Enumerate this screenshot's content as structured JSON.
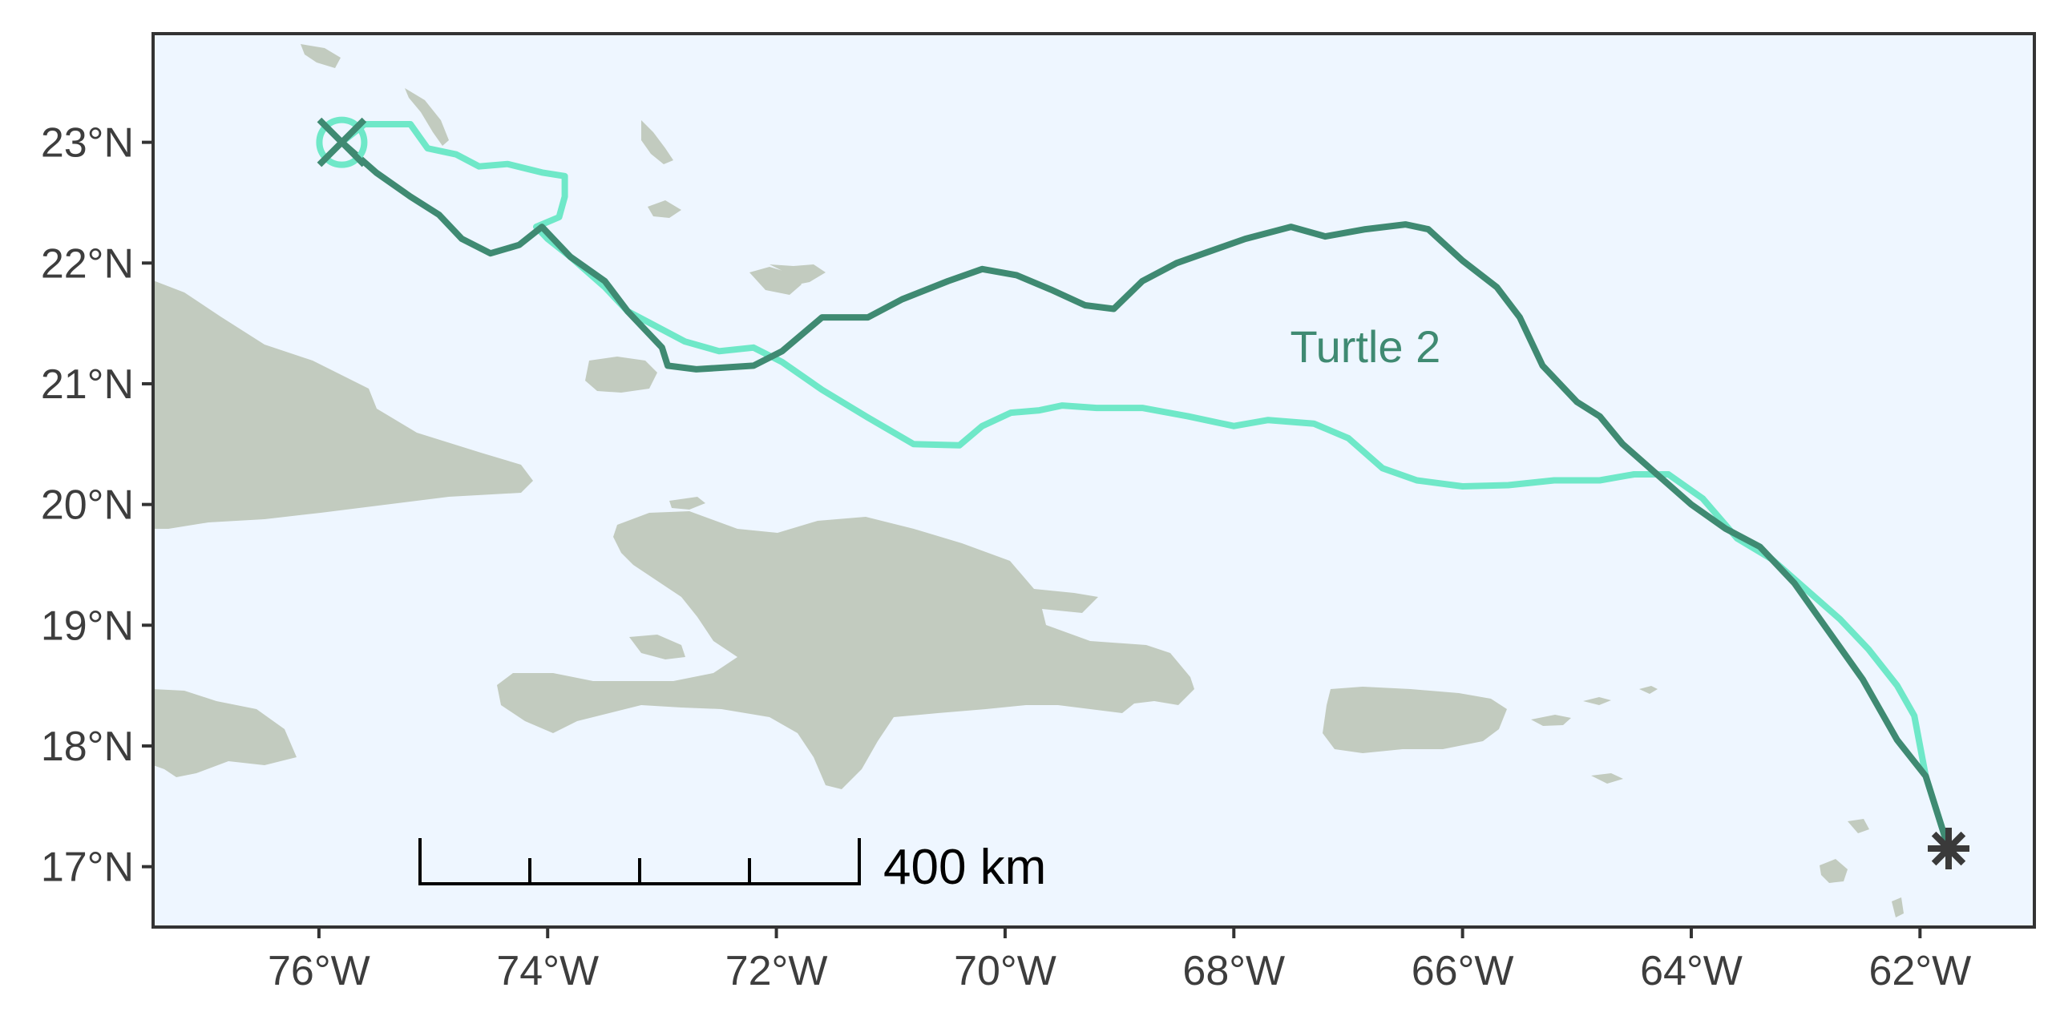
{
  "map": {
    "extent": {
      "lon_min": -77.45,
      "lon_max": -61.0,
      "lat_min": 16.5,
      "lat_max": 23.9
    },
    "colors": {
      "ocean": "#eef6ff",
      "land": "#c2cbbf",
      "frame": "#333333",
      "turtle1": "#6fe8c8",
      "turtle2": "#3f8a72",
      "end_marker": "#3a3a3a"
    },
    "x_axis": {
      "ticks": [
        {
          "value": -76,
          "label": "76°W"
        },
        {
          "value": -74,
          "label": "74°W"
        },
        {
          "value": -72,
          "label": "72°W"
        },
        {
          "value": -70,
          "label": "70°W"
        },
        {
          "value": -68,
          "label": "68°W"
        },
        {
          "value": -66,
          "label": "66°W"
        },
        {
          "value": -64,
          "label": "64°W"
        },
        {
          "value": -62,
          "label": "62°W"
        }
      ]
    },
    "y_axis": {
      "ticks": [
        {
          "value": 23,
          "label": "23°N"
        },
        {
          "value": 22,
          "label": "22°N"
        },
        {
          "value": 21,
          "label": "21°N"
        },
        {
          "value": 20,
          "label": "20°N"
        },
        {
          "value": 19,
          "label": "19°N"
        },
        {
          "value": 18,
          "label": "18°N"
        },
        {
          "value": 17,
          "label": "17°N"
        }
      ]
    },
    "annotation": {
      "text": "Turtle 2",
      "lon": -66.85,
      "lat": 21.18
    },
    "scale_bar": {
      "label": "400 km",
      "divisions": 4
    }
  },
  "chart_data": {
    "type": "line",
    "title": "",
    "xlabel": "",
    "ylabel": "",
    "xlim": [
      -77.45,
      -61.0
    ],
    "ylim": [
      16.5,
      23.9
    ],
    "grid": false,
    "legend": "none",
    "series": [
      {
        "name": "",
        "points": [
          [
            -75.8,
            23.0
          ],
          [
            -75.6,
            23.15
          ],
          [
            -75.4,
            23.15
          ],
          [
            -75.2,
            23.15
          ],
          [
            -75.05,
            22.95
          ],
          [
            -74.8,
            22.9
          ],
          [
            -74.6,
            22.8
          ],
          [
            -74.35,
            22.82
          ],
          [
            -74.05,
            22.75
          ],
          [
            -73.85,
            22.72
          ],
          [
            -73.85,
            22.55
          ],
          [
            -73.9,
            22.38
          ],
          [
            -74.1,
            22.3
          ],
          [
            -74.0,
            22.2
          ],
          [
            -73.8,
            22.05
          ],
          [
            -73.5,
            21.8
          ],
          [
            -73.3,
            21.6
          ],
          [
            -73.1,
            21.5
          ],
          [
            -72.8,
            21.35
          ],
          [
            -72.5,
            21.27
          ],
          [
            -72.2,
            21.3
          ],
          [
            -71.95,
            21.18
          ],
          [
            -71.6,
            20.95
          ],
          [
            -71.2,
            20.72
          ],
          [
            -70.8,
            20.5
          ],
          [
            -70.4,
            20.49
          ],
          [
            -70.2,
            20.65
          ],
          [
            -69.95,
            20.76
          ],
          [
            -69.7,
            20.78
          ],
          [
            -69.5,
            20.82
          ],
          [
            -69.2,
            20.8
          ],
          [
            -68.8,
            20.8
          ],
          [
            -68.4,
            20.73
          ],
          [
            -68.0,
            20.65
          ],
          [
            -67.7,
            20.7
          ],
          [
            -67.3,
            20.67
          ],
          [
            -67.0,
            20.55
          ],
          [
            -66.7,
            20.3
          ],
          [
            -66.4,
            20.2
          ],
          [
            -66.0,
            20.15
          ],
          [
            -65.6,
            20.16
          ],
          [
            -65.2,
            20.2
          ],
          [
            -64.8,
            20.2
          ],
          [
            -64.5,
            20.25
          ],
          [
            -64.2,
            20.25
          ],
          [
            -63.9,
            20.05
          ],
          [
            -63.6,
            19.72
          ],
          [
            -63.3,
            19.55
          ],
          [
            -63.0,
            19.3
          ],
          [
            -62.7,
            19.05
          ],
          [
            -62.45,
            18.8
          ],
          [
            -62.2,
            18.5
          ],
          [
            -62.05,
            18.25
          ],
          [
            -61.95,
            17.75
          ],
          [
            -61.85,
            17.45
          ],
          [
            -61.75,
            17.15
          ]
        ]
      },
      {
        "name": "Turtle 2",
        "points": [
          [
            -75.8,
            23.0
          ],
          [
            -75.5,
            22.75
          ],
          [
            -75.2,
            22.55
          ],
          [
            -74.95,
            22.4
          ],
          [
            -74.75,
            22.2
          ],
          [
            -74.5,
            22.08
          ],
          [
            -74.25,
            22.15
          ],
          [
            -74.05,
            22.3
          ],
          [
            -73.8,
            22.05
          ],
          [
            -73.5,
            21.85
          ],
          [
            -73.3,
            21.6
          ],
          [
            -73.0,
            21.3
          ],
          [
            -72.95,
            21.15
          ],
          [
            -72.7,
            21.12
          ],
          [
            -72.2,
            21.15
          ],
          [
            -71.95,
            21.27
          ],
          [
            -71.6,
            21.55
          ],
          [
            -71.2,
            21.55
          ],
          [
            -70.9,
            21.7
          ],
          [
            -70.5,
            21.85
          ],
          [
            -70.2,
            21.95
          ],
          [
            -69.9,
            21.9
          ],
          [
            -69.6,
            21.78
          ],
          [
            -69.3,
            21.65
          ],
          [
            -69.05,
            21.62
          ],
          [
            -68.8,
            21.85
          ],
          [
            -68.5,
            22.0
          ],
          [
            -68.2,
            22.1
          ],
          [
            -67.9,
            22.2
          ],
          [
            -67.5,
            22.3
          ],
          [
            -67.2,
            22.22
          ],
          [
            -66.85,
            22.28
          ],
          [
            -66.5,
            22.32
          ],
          [
            -66.3,
            22.28
          ],
          [
            -66.0,
            22.02
          ],
          [
            -65.7,
            21.8
          ],
          [
            -65.5,
            21.55
          ],
          [
            -65.3,
            21.15
          ],
          [
            -65.0,
            20.85
          ],
          [
            -64.8,
            20.73
          ],
          [
            -64.6,
            20.5
          ],
          [
            -64.3,
            20.25
          ],
          [
            -64.0,
            20.0
          ],
          [
            -63.7,
            19.8
          ],
          [
            -63.4,
            19.65
          ],
          [
            -63.1,
            19.35
          ],
          [
            -62.8,
            18.95
          ],
          [
            -62.5,
            18.55
          ],
          [
            -62.2,
            18.05
          ],
          [
            -61.95,
            17.75
          ],
          [
            -61.75,
            17.15
          ]
        ]
      }
    ]
  }
}
